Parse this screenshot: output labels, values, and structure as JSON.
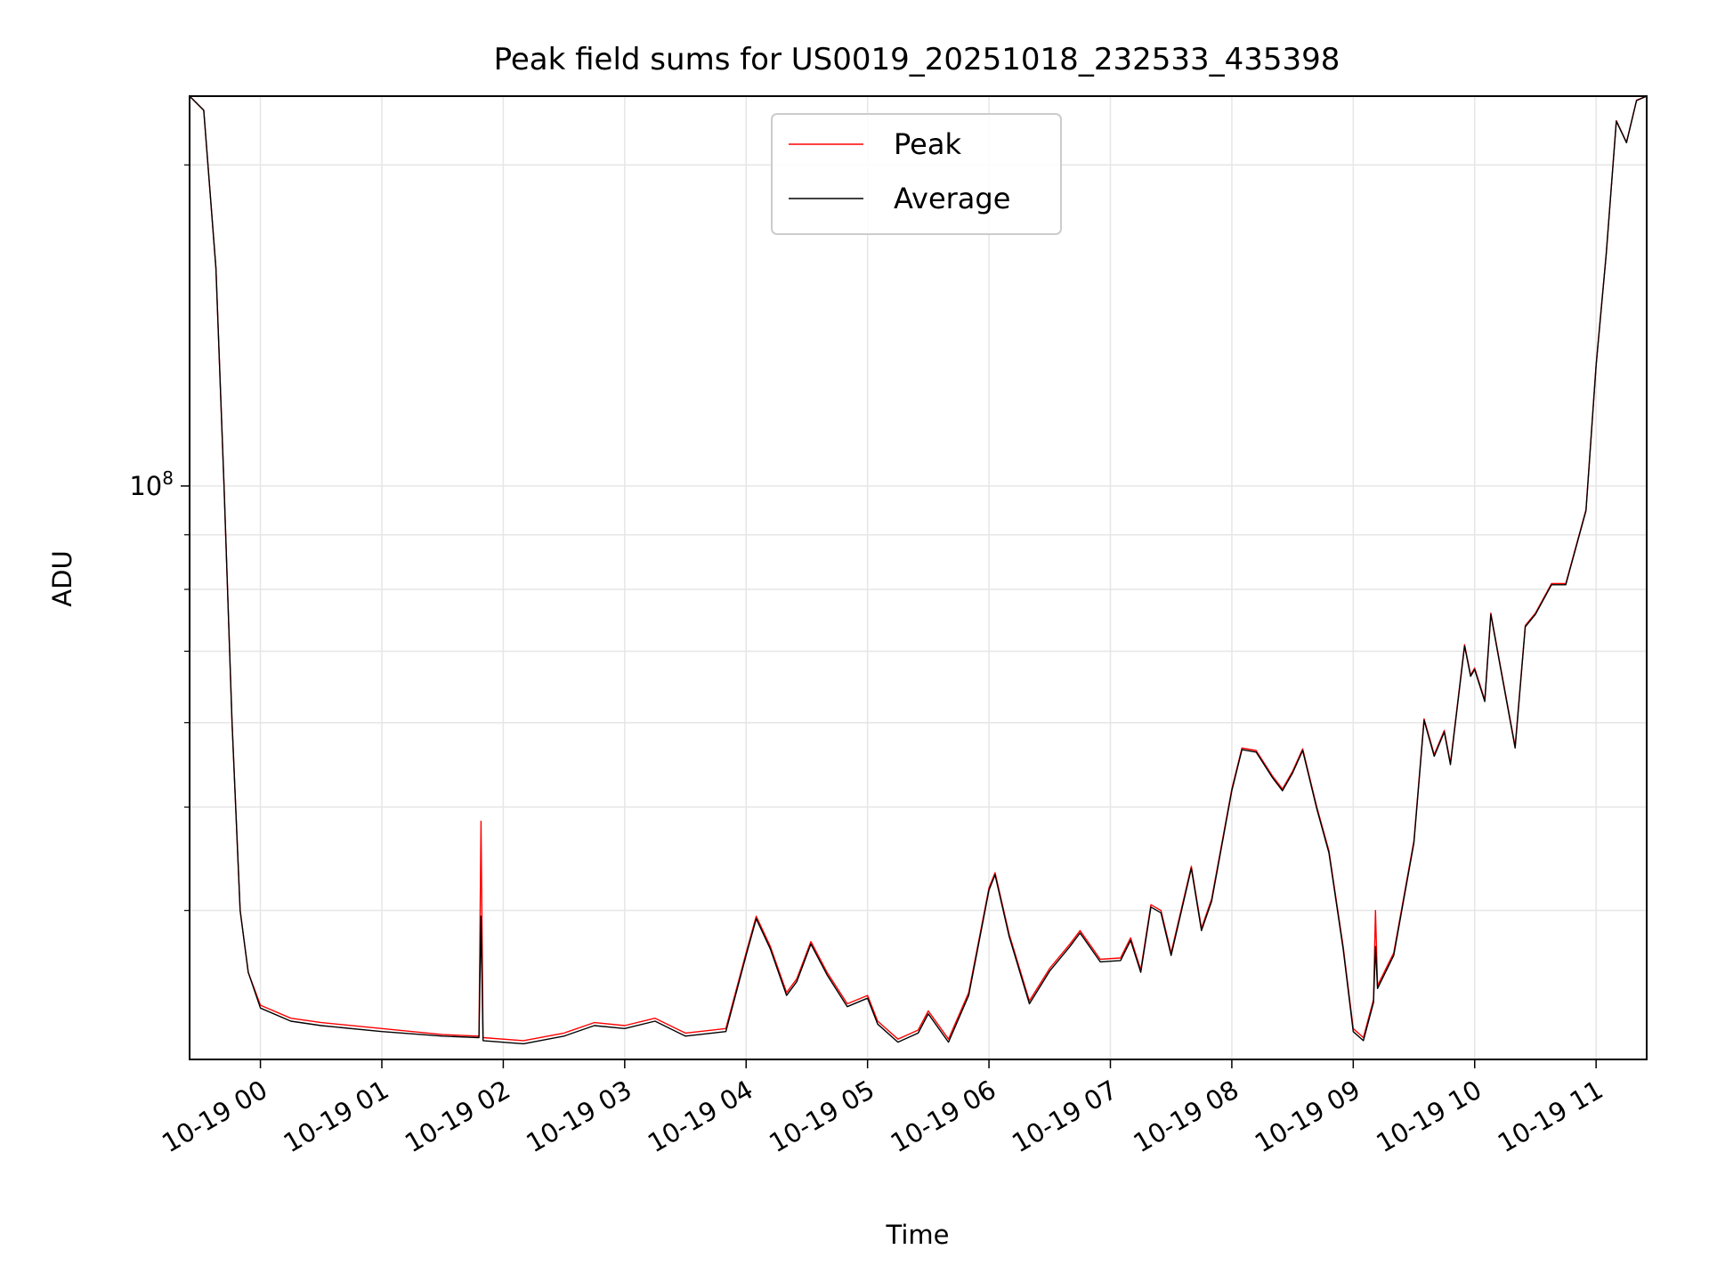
{
  "chart_data": {
    "type": "line",
    "title": "Peak field sums for US0019_20251018_232533_435398",
    "xlabel": "Time",
    "ylabel": "ADU",
    "yscale": "log",
    "grid": true,
    "legend_placement": "upper center",
    "xlim": [
      "2025-10-18 23:25",
      "2025-10-19 11:25"
    ],
    "ylim": [
      29000000,
      232000000
    ],
    "x_ticks": [
      {
        "value": "2025-10-19 00:00",
        "label": "10-19 00"
      },
      {
        "value": "2025-10-19 01:00",
        "label": "10-19 01"
      },
      {
        "value": "2025-10-19 02:00",
        "label": "10-19 02"
      },
      {
        "value": "2025-10-19 03:00",
        "label": "10-19 03"
      },
      {
        "value": "2025-10-19 04:00",
        "label": "10-19 04"
      },
      {
        "value": "2025-10-19 05:00",
        "label": "10-19 05"
      },
      {
        "value": "2025-10-19 06:00",
        "label": "10-19 06"
      },
      {
        "value": "2025-10-19 07:00",
        "label": "10-19 07"
      },
      {
        "value": "2025-10-19 08:00",
        "label": "10-19 08"
      },
      {
        "value": "2025-10-19 09:00",
        "label": "10-19 09"
      },
      {
        "value": "2025-10-19 10:00",
        "label": "10-19 10"
      },
      {
        "value": "2025-10-19 11:00",
        "label": "10-19 11"
      }
    ],
    "y_ticks": [
      {
        "value": 100000000,
        "label_base": "10",
        "label_exp": "8"
      }
    ],
    "y_minor_ticks": [
      40000000,
      50000000,
      60000000,
      70000000,
      80000000,
      90000000,
      200000000
    ],
    "series": [
      {
        "name": "Peak",
        "color": "#ff0000",
        "points": [
          [
            "2025-10-18 23:25",
            232000000
          ],
          [
            "2025-10-18 23:32",
            225000000
          ],
          [
            "2025-10-18 23:38",
            160000000
          ],
          [
            "2025-10-18 23:42",
            100000000
          ],
          [
            "2025-10-18 23:46",
            60000000
          ],
          [
            "2025-10-18 23:50",
            40000000
          ],
          [
            "2025-10-18 23:54",
            35000000
          ],
          [
            "2025-10-19 00:00",
            32600000
          ],
          [
            "2025-10-19 00:15",
            31700000
          ],
          [
            "2025-10-19 00:30",
            31400000
          ],
          [
            "2025-10-19 01:00",
            31000000
          ],
          [
            "2025-10-19 01:30",
            30600000
          ],
          [
            "2025-10-19 01:48",
            30500000
          ],
          [
            "2025-10-19 01:49",
            48500000
          ],
          [
            "2025-10-19 01:50",
            30400000
          ],
          [
            "2025-10-19 02:10",
            30200000
          ],
          [
            "2025-10-19 02:30",
            30700000
          ],
          [
            "2025-10-19 02:45",
            31400000
          ],
          [
            "2025-10-19 03:00",
            31200000
          ],
          [
            "2025-10-19 03:15",
            31700000
          ],
          [
            "2025-10-19 03:30",
            30700000
          ],
          [
            "2025-10-19 03:50",
            31000000
          ],
          [
            "2025-10-19 04:00",
            36500000
          ],
          [
            "2025-10-19 04:05",
            39500000
          ],
          [
            "2025-10-19 04:12",
            37000000
          ],
          [
            "2025-10-19 04:20",
            33500000
          ],
          [
            "2025-10-19 04:25",
            34500000
          ],
          [
            "2025-10-19 04:32",
            37400000
          ],
          [
            "2025-10-19 04:40",
            35000000
          ],
          [
            "2025-10-19 04:50",
            32700000
          ],
          [
            "2025-10-19 05:00",
            33300000
          ],
          [
            "2025-10-19 05:05",
            31500000
          ],
          [
            "2025-10-19 05:15",
            30300000
          ],
          [
            "2025-10-19 05:25",
            30900000
          ],
          [
            "2025-10-19 05:30",
            32200000
          ],
          [
            "2025-10-19 05:40",
            30300000
          ],
          [
            "2025-10-19 05:50",
            33500000
          ],
          [
            "2025-10-19 06:00",
            42000000
          ],
          [
            "2025-10-19 06:03",
            43400000
          ],
          [
            "2025-10-19 06:10",
            38000000
          ],
          [
            "2025-10-19 06:20",
            32900000
          ],
          [
            "2025-10-19 06:30",
            35300000
          ],
          [
            "2025-10-19 06:40",
            37200000
          ],
          [
            "2025-10-19 06:45",
            38300000
          ],
          [
            "2025-10-19 06:55",
            36000000
          ],
          [
            "2025-10-19 07:05",
            36100000
          ],
          [
            "2025-10-19 07:10",
            37700000
          ],
          [
            "2025-10-19 07:15",
            35200000
          ],
          [
            "2025-10-19 07:20",
            40500000
          ],
          [
            "2025-10-19 07:25",
            40000000
          ],
          [
            "2025-10-19 07:30",
            36500000
          ],
          [
            "2025-10-19 07:40",
            44000000
          ],
          [
            "2025-10-19 07:45",
            38500000
          ],
          [
            "2025-10-19 07:50",
            41000000
          ],
          [
            "2025-10-19 08:00",
            52000000
          ],
          [
            "2025-10-19 08:05",
            56800000
          ],
          [
            "2025-10-19 08:12",
            56500000
          ],
          [
            "2025-10-19 08:20",
            53500000
          ],
          [
            "2025-10-19 08:25",
            52000000
          ],
          [
            "2025-10-19 08:30",
            54000000
          ],
          [
            "2025-10-19 08:35",
            56700000
          ],
          [
            "2025-10-19 08:42",
            50000000
          ],
          [
            "2025-10-19 08:48",
            45500000
          ],
          [
            "2025-10-19 08:55",
            37000000
          ],
          [
            "2025-10-19 09:00",
            31000000
          ],
          [
            "2025-10-19 09:05",
            30400000
          ],
          [
            "2025-10-19 09:10",
            33000000
          ],
          [
            "2025-10-19 09:11",
            40000000
          ],
          [
            "2025-10-19 09:12",
            34000000
          ],
          [
            "2025-10-19 09:20",
            36500000
          ],
          [
            "2025-10-19 09:30",
            46500000
          ],
          [
            "2025-10-19 09:35",
            60500000
          ],
          [
            "2025-10-19 09:40",
            56000000
          ],
          [
            "2025-10-19 09:45",
            59000000
          ],
          [
            "2025-10-19 09:48",
            55000000
          ],
          [
            "2025-10-19 09:55",
            71000000
          ],
          [
            "2025-10-19 09:58",
            66500000
          ],
          [
            "2025-10-19 10:00",
            67500000
          ],
          [
            "2025-10-19 10:05",
            63000000
          ],
          [
            "2025-10-19 10:08",
            76000000
          ],
          [
            "2025-10-19 10:12",
            69000000
          ],
          [
            "2025-10-19 10:20",
            57000000
          ],
          [
            "2025-10-19 10:25",
            74000000
          ],
          [
            "2025-10-19 10:30",
            76000000
          ],
          [
            "2025-10-19 10:38",
            81000000
          ],
          [
            "2025-10-19 10:45",
            81000000
          ],
          [
            "2025-10-19 10:55",
            95000000
          ],
          [
            "2025-10-19 11:00",
            130000000
          ],
          [
            "2025-10-19 11:05",
            165000000
          ],
          [
            "2025-10-19 11:10",
            220000000
          ],
          [
            "2025-10-19 11:15",
            210000000
          ],
          [
            "2025-10-19 11:20",
            230000000
          ],
          [
            "2025-10-19 11:25",
            232000000
          ]
        ]
      },
      {
        "name": "Average",
        "color": "#000000",
        "points": [
          [
            "2025-10-18 23:25",
            232000000
          ],
          [
            "2025-10-18 23:32",
            225000000
          ],
          [
            "2025-10-18 23:38",
            160000000
          ],
          [
            "2025-10-18 23:42",
            100000000
          ],
          [
            "2025-10-18 23:46",
            60000000
          ],
          [
            "2025-10-18 23:50",
            40000000
          ],
          [
            "2025-10-18 23:54",
            35000000
          ],
          [
            "2025-10-19 00:00",
            32400000
          ],
          [
            "2025-10-19 00:15",
            31500000
          ],
          [
            "2025-10-19 00:30",
            31200000
          ],
          [
            "2025-10-19 01:00",
            30800000
          ],
          [
            "2025-10-19 01:30",
            30500000
          ],
          [
            "2025-10-19 01:48",
            30400000
          ],
          [
            "2025-10-19 01:49",
            39500000
          ],
          [
            "2025-10-19 01:50",
            30200000
          ],
          [
            "2025-10-19 02:10",
            30000000
          ],
          [
            "2025-10-19 02:30",
            30500000
          ],
          [
            "2025-10-19 02:45",
            31200000
          ],
          [
            "2025-10-19 03:00",
            31000000
          ],
          [
            "2025-10-19 03:15",
            31500000
          ],
          [
            "2025-10-19 03:30",
            30500000
          ],
          [
            "2025-10-19 03:50",
            30800000
          ],
          [
            "2025-10-19 04:00",
            36300000
          ],
          [
            "2025-10-19 04:05",
            39300000
          ],
          [
            "2025-10-19 04:12",
            36800000
          ],
          [
            "2025-10-19 04:20",
            33300000
          ],
          [
            "2025-10-19 04:25",
            34300000
          ],
          [
            "2025-10-19 04:32",
            37200000
          ],
          [
            "2025-10-19 04:40",
            34800000
          ],
          [
            "2025-10-19 04:50",
            32500000
          ],
          [
            "2025-10-19 05:00",
            33100000
          ],
          [
            "2025-10-19 05:05",
            31300000
          ],
          [
            "2025-10-19 05:15",
            30100000
          ],
          [
            "2025-10-19 05:25",
            30700000
          ],
          [
            "2025-10-19 05:30",
            32000000
          ],
          [
            "2025-10-19 05:40",
            30100000
          ],
          [
            "2025-10-19 05:50",
            33300000
          ],
          [
            "2025-10-19 06:00",
            41800000
          ],
          [
            "2025-10-19 06:03",
            43200000
          ],
          [
            "2025-10-19 06:10",
            37800000
          ],
          [
            "2025-10-19 06:20",
            32700000
          ],
          [
            "2025-10-19 06:30",
            35100000
          ],
          [
            "2025-10-19 06:40",
            37000000
          ],
          [
            "2025-10-19 06:45",
            38100000
          ],
          [
            "2025-10-19 06:55",
            35800000
          ],
          [
            "2025-10-19 07:05",
            35900000
          ],
          [
            "2025-10-19 07:10",
            37500000
          ],
          [
            "2025-10-19 07:15",
            35000000
          ],
          [
            "2025-10-19 07:20",
            40300000
          ],
          [
            "2025-10-19 07:25",
            39800000
          ],
          [
            "2025-10-19 07:30",
            36300000
          ],
          [
            "2025-10-19 07:40",
            43800000
          ],
          [
            "2025-10-19 07:45",
            38300000
          ],
          [
            "2025-10-19 07:50",
            40800000
          ],
          [
            "2025-10-19 08:00",
            51800000
          ],
          [
            "2025-10-19 08:05",
            56600000
          ],
          [
            "2025-10-19 08:12",
            56300000
          ],
          [
            "2025-10-19 08:20",
            53300000
          ],
          [
            "2025-10-19 08:25",
            51800000
          ],
          [
            "2025-10-19 08:30",
            53800000
          ],
          [
            "2025-10-19 08:35",
            56500000
          ],
          [
            "2025-10-19 08:42",
            49800000
          ],
          [
            "2025-10-19 08:48",
            45300000
          ],
          [
            "2025-10-19 08:55",
            36800000
          ],
          [
            "2025-10-19 09:00",
            30800000
          ],
          [
            "2025-10-19 09:05",
            30200000
          ],
          [
            "2025-10-19 09:10",
            32800000
          ],
          [
            "2025-10-19 09:11",
            37000000
          ],
          [
            "2025-10-19 09:12",
            33800000
          ],
          [
            "2025-10-19 09:20",
            36300000
          ],
          [
            "2025-10-19 09:30",
            46300000
          ],
          [
            "2025-10-19 09:35",
            60300000
          ],
          [
            "2025-10-19 09:40",
            55800000
          ],
          [
            "2025-10-19 09:45",
            58800000
          ],
          [
            "2025-10-19 09:48",
            54800000
          ],
          [
            "2025-10-19 09:55",
            70800000
          ],
          [
            "2025-10-19 09:58",
            66300000
          ],
          [
            "2025-10-19 10:00",
            67300000
          ],
          [
            "2025-10-19 10:05",
            62800000
          ],
          [
            "2025-10-19 10:08",
            75800000
          ],
          [
            "2025-10-19 10:12",
            68800000
          ],
          [
            "2025-10-19 10:20",
            56800000
          ],
          [
            "2025-10-19 10:25",
            73800000
          ],
          [
            "2025-10-19 10:30",
            75800000
          ],
          [
            "2025-10-19 10:38",
            80800000
          ],
          [
            "2025-10-19 10:45",
            80800000
          ],
          [
            "2025-10-19 10:55",
            94800000
          ],
          [
            "2025-10-19 11:00",
            129800000
          ],
          [
            "2025-10-19 11:05",
            164800000
          ],
          [
            "2025-10-19 11:10",
            219800000
          ],
          [
            "2025-10-19 11:15",
            209800000
          ],
          [
            "2025-10-19 11:20",
            229800000
          ],
          [
            "2025-10-19 11:25",
            232000000
          ]
        ]
      }
    ]
  }
}
